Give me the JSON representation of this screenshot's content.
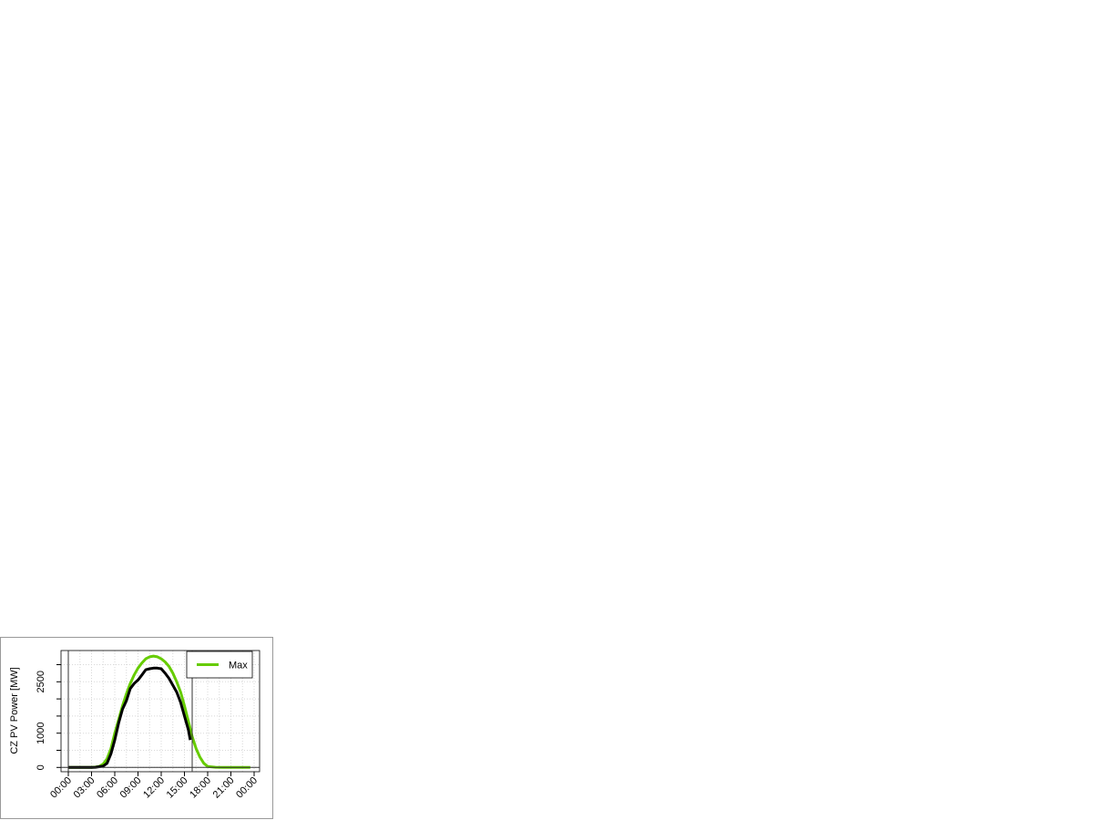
{
  "chart_data": {
    "type": "line",
    "title": "",
    "xlabel": "",
    "ylabel": "CZ PV Power [MW]",
    "x_tick_labels": [
      "00:00",
      "03:00",
      "06:00",
      "09:00",
      "12:00",
      "15:00",
      "18:00",
      "21:00",
      "00:00"
    ],
    "y_ticks": [
      0,
      500,
      1000,
      1500,
      2000,
      2500,
      3000
    ],
    "y_tick_labels": [
      "0",
      "1000",
      "2500"
    ],
    "xlim_hours": [
      0,
      24
    ],
    "ylim": [
      0,
      3300
    ],
    "grid": true,
    "legend": {
      "position": "top-right",
      "entries": [
        {
          "name": "Max",
          "color": "#66cc00"
        }
      ]
    },
    "vertical_lines_hours": [
      0,
      16
    ],
    "series": [
      {
        "name": "Max",
        "color": "#66cc00",
        "x_hours": [
          0,
          1,
          2,
          3,
          3.5,
          4,
          4.5,
          5,
          5.5,
          6,
          6.5,
          7,
          7.5,
          8,
          8.5,
          9,
          9.5,
          10,
          10.5,
          11,
          11.5,
          12,
          12.5,
          13,
          13.5,
          14,
          14.5,
          15,
          15.5,
          16,
          16.5,
          17,
          17.5,
          18,
          19,
          20,
          21,
          22,
          23,
          23.5
        ],
        "values": [
          0,
          0,
          0,
          0,
          10,
          30,
          100,
          250,
          550,
          1000,
          1400,
          1800,
          2150,
          2450,
          2700,
          2900,
          3050,
          3170,
          3230,
          3250,
          3230,
          3170,
          3080,
          2950,
          2750,
          2500,
          2200,
          1800,
          1350,
          900,
          550,
          300,
          120,
          30,
          5,
          0,
          0,
          0,
          0,
          0
        ]
      },
      {
        "color": "#000000",
        "x_hours": [
          0,
          1,
          2,
          3,
          3.5,
          4,
          4.5,
          5,
          5.5,
          6,
          6.5,
          7,
          7.5,
          8,
          8.5,
          9,
          9.5,
          10,
          10.5,
          11,
          11.5,
          12,
          12.5,
          13,
          13.5,
          14,
          14.5,
          15,
          15.5,
          15.75
        ],
        "values": [
          0,
          0,
          0,
          0,
          5,
          20,
          40,
          120,
          400,
          800,
          1300,
          1700,
          1950,
          2300,
          2450,
          2550,
          2700,
          2850,
          2880,
          2900,
          2900,
          2880,
          2750,
          2600,
          2400,
          2200,
          1900,
          1500,
          1100,
          800
        ]
      }
    ]
  }
}
